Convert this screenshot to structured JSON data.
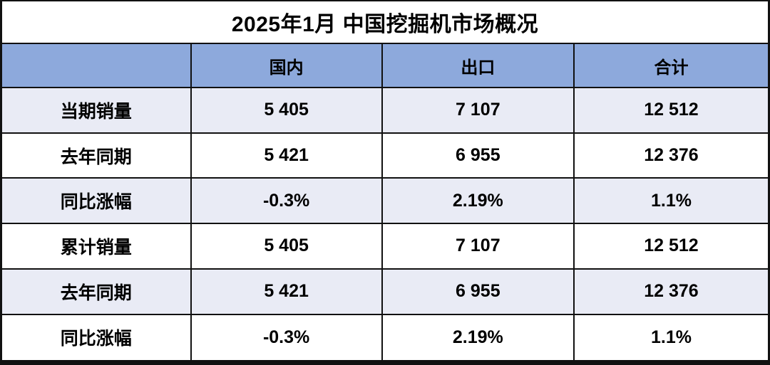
{
  "chart_data": {
    "type": "table",
    "title": "2025年1月 中国挖掘机市场概况",
    "columns": [
      "",
      "国内",
      "出口",
      "合计"
    ],
    "rows": [
      {
        "label": "当期销量",
        "values": [
          "5 405",
          "7 107",
          "12 512"
        ]
      },
      {
        "label": "去年同期",
        "values": [
          "5 421",
          "6 955",
          "12 376"
        ]
      },
      {
        "label": "同比涨幅",
        "values": [
          "-0.3%",
          "2.19%",
          "1.1%"
        ]
      },
      {
        "label": "累计销量",
        "values": [
          "5 405",
          "7 107",
          "12 512"
        ]
      },
      {
        "label": "去年同期",
        "values": [
          "5 421",
          "6 955",
          "12 376"
        ]
      },
      {
        "label": "同比涨幅",
        "values": [
          "-0.3%",
          "2.19%",
          "1.1%"
        ]
      }
    ],
    "layout_hints": {
      "title_position": "top-row-spanning-all-columns",
      "alternating_rows": "odd data rows shaded",
      "grid": "on"
    }
  },
  "colors": {
    "header_bg": "#8DA9DC",
    "alt_row_bg": "#E9EBF5",
    "plain_row_bg": "#FFFFFF",
    "border": "#111111",
    "text": "#000000"
  }
}
